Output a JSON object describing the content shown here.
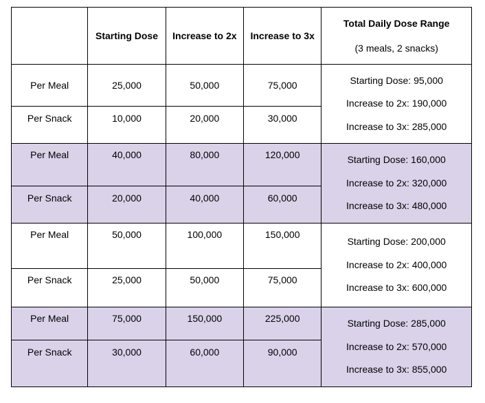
{
  "header": {
    "blank": "",
    "starting_dose": "Starting Dose",
    "increase_2x": "Increase to 2x",
    "increase_3x": "Increase to 3x",
    "total_title": "Total Daily Dose Range",
    "total_sub": "(3 meals, 2 snacks)"
  },
  "groups": [
    {
      "meal": {
        "label": "Per Meal",
        "start": "25,000",
        "x2": "50,000",
        "x3": "75,000"
      },
      "snack": {
        "label": "Per Snack",
        "start": "10,000",
        "x2": "20,000",
        "x3": "30,000"
      },
      "total": [
        "Starting Dose: 95,000",
        "Increase to 2x: 190,000",
        "Increase to 3x: 285,000"
      ]
    },
    {
      "meal": {
        "label": "Per Meal",
        "start": "40,000",
        "x2": "80,000",
        "x3": "120,000"
      },
      "snack": {
        "label": "Per Snack",
        "start": "20,000",
        "x2": "40,000",
        "x3": "60,000"
      },
      "total": [
        "Starting Dose: 160,000",
        "Increase to 2x: 320,000",
        "Increase to 3x: 480,000"
      ]
    },
    {
      "meal": {
        "label": "Per Meal",
        "start": "50,000",
        "x2": "100,000",
        "x3": "150,000"
      },
      "snack": {
        "label": "Per Snack",
        "start": "25,000",
        "x2": "50,000",
        "x3": "75,000"
      },
      "total": [
        "Starting Dose: 200,000",
        "Increase to 2x: 400,000",
        "Increase to 3x: 600,000"
      ]
    },
    {
      "meal": {
        "label": "Per Meal",
        "start": "75,000",
        "x2": "150,000",
        "x3": "225,000"
      },
      "snack": {
        "label": "Per Snack",
        "start": "30,000",
        "x2": "60,000",
        "x3": "90,000"
      },
      "total": [
        "Starting Dose: 285,000",
        "Increase to 2x: 570,000",
        "Increase to 3x: 855,000"
      ]
    }
  ],
  "colors": {
    "shaded_row": "#d9d2e9",
    "plain_row": "#ffffff",
    "border": "#000000"
  }
}
